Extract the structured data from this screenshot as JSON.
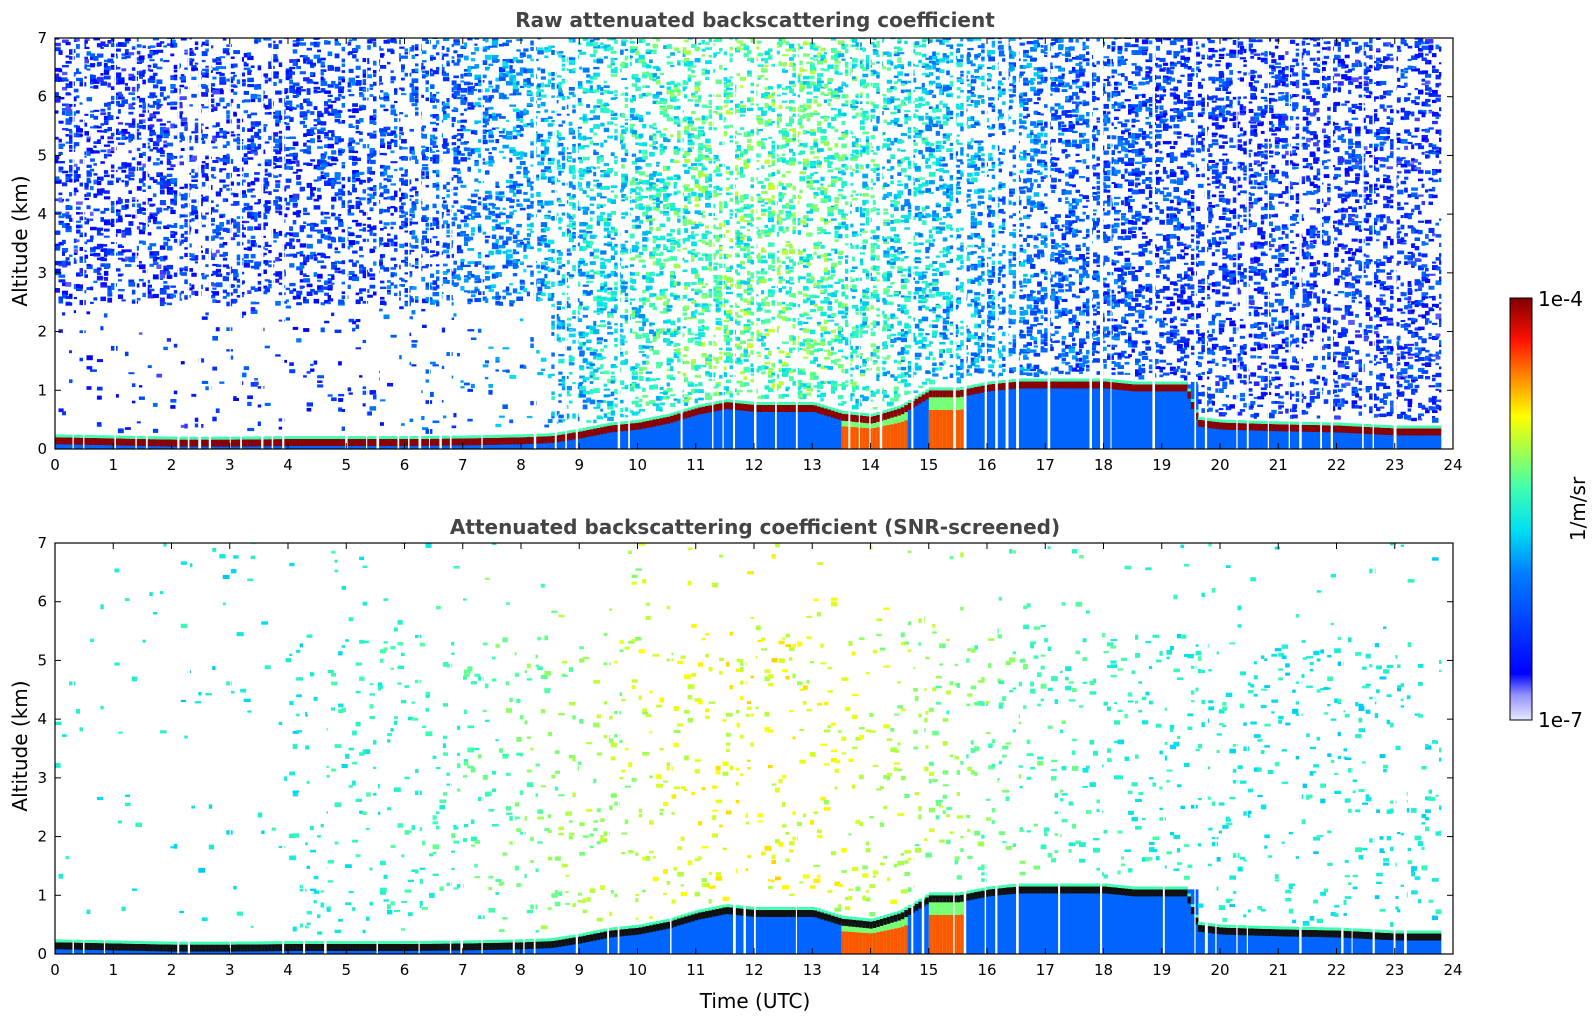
{
  "chart_data": [
    {
      "type": "heatmap",
      "title": "Raw attenuated backscattering coefficient",
      "xlabel": "",
      "ylabel": "Altitude (km)",
      "xlim": [
        0,
        24
      ],
      "ylim": [
        0,
        7
      ],
      "xticks": [
        "0",
        "1",
        "2",
        "3",
        "4",
        "5",
        "6",
        "7",
        "8",
        "9",
        "10",
        "11",
        "12",
        "13",
        "14",
        "15",
        "16",
        "17",
        "18",
        "19",
        "20",
        "21",
        "22",
        "23",
        "24"
      ],
      "yticks": [
        "0",
        "1",
        "2",
        "3",
        "4",
        "5",
        "6",
        "7"
      ],
      "screened": false,
      "layer_top_km": {
        "time_utc": [
          0,
          1,
          2,
          3,
          4,
          5,
          6,
          7,
          8,
          8.5,
          9,
          9.5,
          10,
          10.5,
          11,
          11.5,
          12,
          12.5,
          13,
          13.5,
          14,
          14.5,
          15,
          15.5,
          16,
          16.5,
          17,
          17.5,
          18,
          18.5,
          19,
          19.4,
          19.6,
          20,
          21,
          22,
          23,
          23.8
        ],
        "altitude_km": [
          0.2,
          0.18,
          0.16,
          0.16,
          0.17,
          0.17,
          0.17,
          0.18,
          0.2,
          0.22,
          0.3,
          0.4,
          0.45,
          0.55,
          0.7,
          0.8,
          0.75,
          0.75,
          0.75,
          0.6,
          0.55,
          0.7,
          1.0,
          1.0,
          1.1,
          1.15,
          1.15,
          1.15,
          1.15,
          1.1,
          1.1,
          1.1,
          0.5,
          0.45,
          0.42,
          0.4,
          0.35,
          0.35
        ]
      }
    },
    {
      "type": "heatmap",
      "title": "Attenuated backscattering coefficient (SNR-screened)",
      "xlabel": "Time (UTC)",
      "ylabel": "Altitude (km)",
      "xlim": [
        0,
        24
      ],
      "ylim": [
        0,
        7
      ],
      "xticks": [
        "0",
        "1",
        "2",
        "3",
        "4",
        "5",
        "6",
        "7",
        "8",
        "9",
        "10",
        "11",
        "12",
        "13",
        "14",
        "15",
        "16",
        "17",
        "18",
        "19",
        "20",
        "21",
        "22",
        "23",
        "24"
      ],
      "yticks": [
        "0",
        "1",
        "2",
        "3",
        "4",
        "5",
        "6",
        "7"
      ],
      "screened": true,
      "layer_top_km": {
        "time_utc": [
          0,
          1,
          2,
          3,
          4,
          5,
          6,
          7,
          8,
          8.5,
          9,
          9.5,
          10,
          10.5,
          11,
          11.5,
          12,
          12.5,
          13,
          13.5,
          14,
          14.5,
          15,
          15.5,
          16,
          16.5,
          17,
          17.5,
          18,
          18.5,
          19,
          19.4,
          19.6,
          20,
          21,
          22,
          23,
          23.8
        ],
        "altitude_km": [
          0.2,
          0.18,
          0.16,
          0.16,
          0.17,
          0.17,
          0.17,
          0.18,
          0.2,
          0.22,
          0.3,
          0.4,
          0.45,
          0.55,
          0.7,
          0.8,
          0.75,
          0.75,
          0.75,
          0.6,
          0.55,
          0.7,
          1.0,
          1.0,
          1.1,
          1.15,
          1.15,
          1.15,
          1.15,
          1.1,
          1.1,
          1.1,
          0.5,
          0.45,
          0.42,
          0.4,
          0.35,
          0.35
        ]
      }
    }
  ],
  "colorbar": {
    "max_label": "1e-4",
    "min_label": "1e-7",
    "unit_label": "1/m/sr",
    "colormap": "jet",
    "top_color": "#7f0000",
    "bottom_color": "#e8e8ff"
  }
}
